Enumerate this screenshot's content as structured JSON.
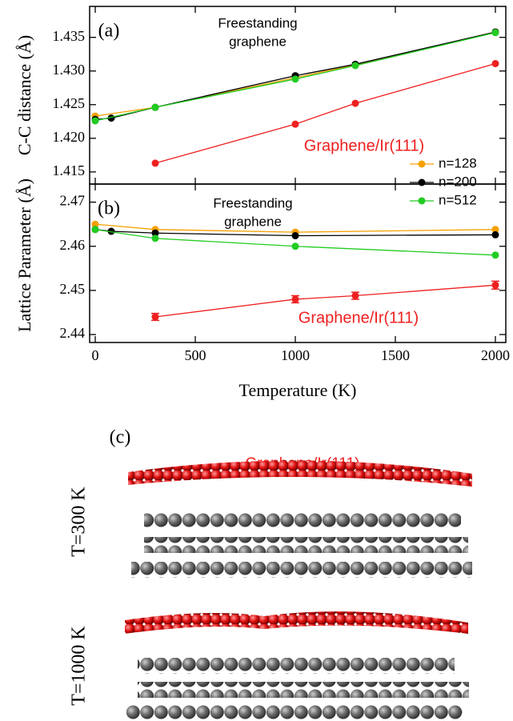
{
  "chart_data": [
    {
      "type": "line",
      "panel_label": "(a)",
      "ylabel": "C-C distance (Å)",
      "xlim": [
        -28,
        2052
      ],
      "xticks": [
        0,
        500,
        1000,
        1500,
        2000
      ],
      "ylim": [
        1.4132,
        1.4396
      ],
      "yticks": [
        1.415,
        {
          "value": 1.42,
          "label": "1.420"
        },
        1.425,
        {
          "value": 1.43,
          "label": "1.430"
        },
        1.435
      ],
      "legend": "lower right",
      "series": [
        {
          "name": "n=128",
          "color": "#f5a000",
          "x": [
            0,
            300,
            1000,
            1300,
            2000
          ],
          "values": [
            1.4233,
            1.4246,
            1.429,
            1.4309,
            1.4358
          ]
        },
        {
          "name": "n=200",
          "color": "#000000",
          "x": [
            0,
            80,
            300,
            1000,
            1300,
            2000
          ],
          "values": [
            1.4228,
            1.423,
            1.4246,
            1.4293,
            1.431,
            1.4358
          ]
        },
        {
          "name": "n=512",
          "color": "#22cc22",
          "x": [
            0,
            300,
            1000,
            1300,
            2000
          ],
          "values": [
            1.4226,
            1.4246,
            1.4288,
            1.4308,
            1.4357
          ]
        },
        {
          "color": "#ee2020",
          "x": [
            300,
            1000,
            1300,
            2000
          ],
          "values": [
            1.4163,
            1.4221,
            1.4252,
            1.4311
          ]
        }
      ],
      "annotations": [
        {
          "text": [
            "Freestanding",
            "graphene"
          ],
          "color": "#000000"
        },
        {
          "text": [
            "Graphene/Ir(111)"
          ],
          "color": "#ee2020"
        }
      ]
    },
    {
      "type": "line",
      "panel_label": "(b)",
      "ylabel": "Lattice Parameter (Å)",
      "xlabel": "Temperature (K)",
      "xlim": [
        -28,
        2052
      ],
      "xticks": [
        0,
        500,
        1000,
        1500,
        2000
      ],
      "ylim": [
        2.4382,
        2.4741
      ],
      "yticks": [
        2.44,
        2.45,
        2.46,
        2.47
      ],
      "series": [
        {
          "color": "#f5a000",
          "x": [
            0,
            300,
            1000,
            2000
          ],
          "values": [
            2.465,
            2.4638,
            2.4632,
            2.4638
          ]
        },
        {
          "color": "#000000",
          "x": [
            0,
            80,
            300,
            1000,
            2000
          ],
          "values": [
            2.4638,
            2.4634,
            2.463,
            2.4624,
            2.4626
          ]
        },
        {
          "color": "#22cc22",
          "x": [
            0,
            300,
            1000,
            2000
          ],
          "values": [
            2.4638,
            2.4618,
            2.46,
            2.458
          ]
        },
        {
          "color": "#ee2020",
          "x": [
            300,
            1000,
            1300,
            2000
          ],
          "values": [
            2.444,
            2.448,
            2.4488,
            2.4512
          ],
          "errors": [
            0.0008,
            0.0008,
            0.0008,
            0.0009
          ]
        }
      ],
      "annotations": [
        {
          "text": [
            "Freestanding",
            "graphene"
          ],
          "color": "#000000"
        },
        {
          "text": [
            "Graphene/Ir(111)"
          ],
          "color": "#ee2020"
        }
      ]
    }
  ],
  "panel_c": {
    "label": "(c)",
    "title": "Graphene/Ir(111)",
    "rows": [
      "T=300 K",
      "T=1000 K"
    ]
  }
}
